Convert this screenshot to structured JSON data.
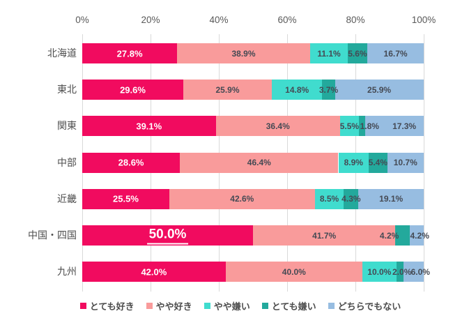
{
  "chart_data": {
    "type": "bar",
    "variant": "horizontal-stacked",
    "title": "",
    "categories": [
      "北海道",
      "東北",
      "関東",
      "中部",
      "近畿",
      "中国・四国",
      "九州"
    ],
    "series": [
      {
        "name": "とても好き",
        "color": "#f10b5f",
        "values": [
          27.8,
          29.6,
          39.1,
          28.6,
          25.5,
          50.0,
          42.0
        ]
      },
      {
        "name": "やや好き",
        "color": "#f99b9b",
        "values": [
          38.9,
          25.9,
          36.4,
          46.4,
          42.6,
          41.7,
          40.0
        ]
      },
      {
        "name": "やや嫌い",
        "color": "#40dcce",
        "values": [
          11.1,
          14.8,
          5.5,
          8.9,
          8.5,
          0,
          10.0
        ]
      },
      {
        "name": "とても嫌い",
        "color": "#23a99c",
        "values": [
          5.6,
          3.7,
          1.8,
          5.4,
          4.3,
          4.2,
          2.0
        ]
      },
      {
        "name": "どちらでもない",
        "color": "#97bde1",
        "values": [
          16.7,
          25.9,
          17.3,
          10.7,
          19.1,
          4.2,
          6.0
        ]
      }
    ],
    "x_axis": {
      "position": "top",
      "min": 0,
      "max": 100,
      "tick_step": 20,
      "ticks": [
        "0%",
        "20%",
        "40%",
        "60%",
        "80%",
        "100%"
      ],
      "grid": true,
      "grid_color": "#d9d9d9"
    },
    "value_label_suffix": "%",
    "value_label_decimals": 1,
    "highlight": {
      "category": "中国・四国",
      "series": "とても好き",
      "style": "large-underlined-white"
    },
    "label_offsets": {
      "関東": {
        "とても嫌い": 11,
        "どちらでもない": 14
      },
      "中国・四国": {
        "とても嫌い": -19,
        "どちらでもない": 4
      },
      "九州": {
        "とても嫌い": 3,
        "どちらでもない": 10
      }
    },
    "legend": {
      "position": "bottom",
      "entries": [
        "とても好き",
        "やや好き",
        "やや嫌い",
        "とても嫌い",
        "どちらでもない"
      ]
    }
  }
}
